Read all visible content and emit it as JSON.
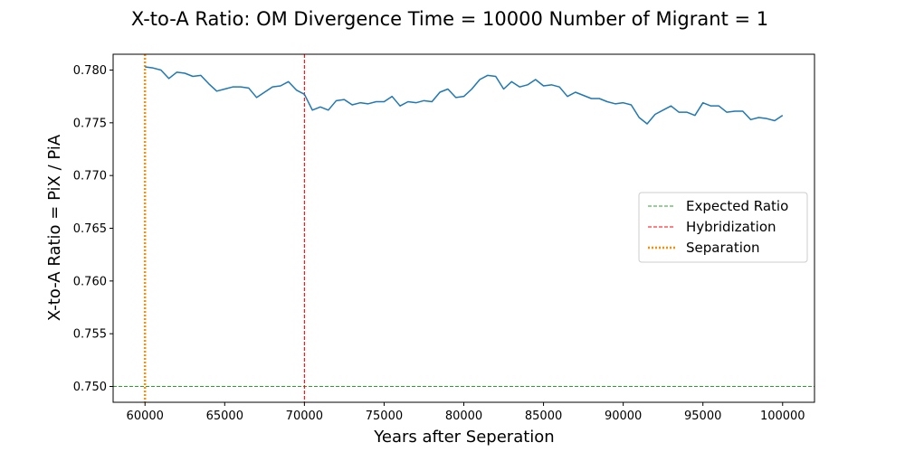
{
  "chart_data": {
    "type": "line",
    "title": "X-to-A Ratio: OM Divergence Time = 10000  Number of Migrant = 1",
    "xlabel": "Years after Seperation",
    "ylabel": "X-to-A Ratio = PiX / PiA",
    "xlim": [
      58000,
      102000
    ],
    "ylim": [
      0.7485,
      0.7815
    ],
    "xticks": [
      60000,
      65000,
      70000,
      75000,
      80000,
      85000,
      90000,
      95000,
      100000
    ],
    "yticks": [
      0.75,
      0.755,
      0.76,
      0.765,
      0.77,
      0.775,
      0.78
    ],
    "xtick_labels": [
      "60000",
      "65000",
      "70000",
      "75000",
      "80000",
      "85000",
      "90000",
      "95000",
      "100000"
    ],
    "ytick_labels": [
      "0.750",
      "0.755",
      "0.760",
      "0.765",
      "0.770",
      "0.775",
      "0.780"
    ],
    "grid": false,
    "legend_position": "center-right",
    "series": [
      {
        "name": "",
        "color": "#1f77b4",
        "x": [
          60000,
          60500,
          61000,
          61500,
          62000,
          62500,
          63000,
          63500,
          64000,
          64500,
          65000,
          65500,
          66000,
          66500,
          67000,
          67500,
          68000,
          68500,
          69000,
          69500,
          70000,
          70500,
          71000,
          71500,
          72000,
          72500,
          73000,
          73500,
          74000,
          74500,
          75000,
          75500,
          76000,
          76500,
          77000,
          77500,
          78000,
          78500,
          79000,
          79500,
          80000,
          80500,
          81000,
          81500,
          82000,
          82500,
          83000,
          83500,
          84000,
          84500,
          85000,
          85500,
          86000,
          86500,
          87000,
          87500,
          88000,
          88500,
          89000,
          89500,
          90000,
          90500,
          91000,
          91500,
          92000,
          92500,
          93000,
          93500,
          94000,
          94500,
          95000,
          95500,
          96000,
          96500,
          97000,
          97500,
          98000,
          98500,
          99000,
          99500,
          100000
        ],
        "y": [
          0.7803,
          0.7802,
          0.78,
          0.7792,
          0.7798,
          0.7797,
          0.7794,
          0.7795,
          0.7787,
          0.778,
          0.7782,
          0.7784,
          0.7784,
          0.7783,
          0.7774,
          0.7779,
          0.7784,
          0.7785,
          0.7789,
          0.7781,
          0.7777,
          0.7762,
          0.7765,
          0.7762,
          0.7771,
          0.7772,
          0.7767,
          0.7769,
          0.7768,
          0.777,
          0.777,
          0.7775,
          0.7766,
          0.777,
          0.7769,
          0.7771,
          0.777,
          0.7779,
          0.7782,
          0.7774,
          0.7775,
          0.7782,
          0.7791,
          0.7795,
          0.7794,
          0.7782,
          0.7789,
          0.7784,
          0.7786,
          0.7791,
          0.7785,
          0.7786,
          0.7784,
          0.7775,
          0.7779,
          0.7776,
          0.7773,
          0.7773,
          0.777,
          0.7768,
          0.7769,
          0.7767,
          0.7755,
          0.7749,
          0.7758,
          0.7762,
          0.7766,
          0.776,
          0.776,
          0.7757,
          0.7769,
          0.7766,
          0.7766,
          0.776,
          0.7761,
          0.7761,
          0.7753,
          0.7755,
          0.7754,
          0.7752,
          0.7757
        ]
      }
    ],
    "reference_lines": [
      {
        "name": "Expected Ratio",
        "orientation": "horizontal",
        "value": 0.75,
        "color": "#2ca02c",
        "style": "dashed"
      },
      {
        "name": "Hybridization",
        "orientation": "vertical",
        "value": 70000,
        "color": "#ff0000",
        "style": "dashed"
      },
      {
        "name": "Separation",
        "orientation": "vertical",
        "value": 60000,
        "color": "#ff8c00",
        "style": "dotted"
      }
    ],
    "legend": [
      {
        "label": "Expected Ratio",
        "color": "#2ca02c",
        "style": "dashed"
      },
      {
        "label": "Hybridization",
        "color": "#ff0000",
        "style": "dashed"
      },
      {
        "label": "Separation",
        "color": "#ff8c00",
        "style": "dotted"
      }
    ]
  }
}
